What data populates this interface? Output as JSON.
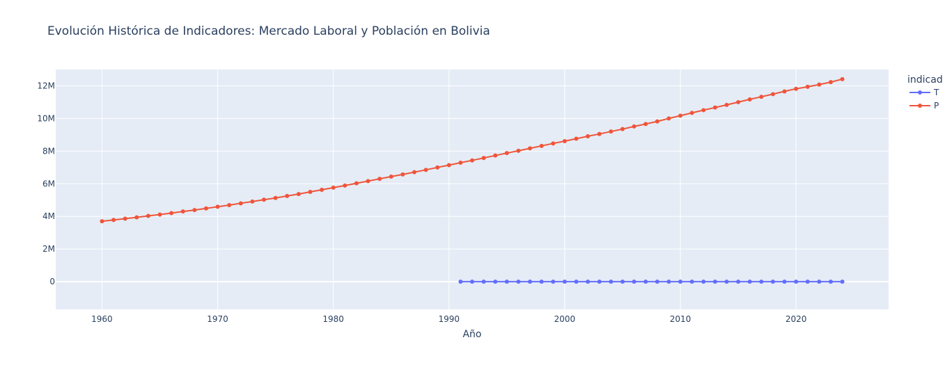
{
  "chart_data": {
    "type": "line",
    "title": "Evolución Histórica de Indicadores: Mercado Laboral y Población en Bolivia",
    "xlabel": "Año",
    "ylabel": "",
    "xlim": [
      1956,
      2028
    ],
    "ylim": [
      -1.7,
      13.0
    ],
    "xticks": [
      1960,
      1970,
      1980,
      1990,
      2000,
      2010,
      2020
    ],
    "yticks": [
      0,
      2,
      4,
      6,
      8,
      10,
      12
    ],
    "ytick_labels": [
      "0",
      "2M",
      "4M",
      "6M",
      "8M",
      "10M",
      "12M"
    ],
    "grid": true,
    "legend": {
      "title": "indicad",
      "position": "right"
    },
    "series": [
      {
        "name": "T",
        "color": "#636efa",
        "x": [
          1991,
          1992,
          1993,
          1994,
          1995,
          1996,
          1997,
          1998,
          1999,
          2000,
          2001,
          2002,
          2003,
          2004,
          2005,
          2006,
          2007,
          2008,
          2009,
          2010,
          2011,
          2012,
          2013,
          2014,
          2015,
          2016,
          2017,
          2018,
          2019,
          2020,
          2021,
          2022,
          2023,
          2024
        ],
        "values": [
          0,
          0,
          0,
          0,
          0,
          0,
          0,
          0,
          0,
          0,
          0,
          0,
          0,
          0,
          0,
          0,
          0,
          0,
          0,
          0,
          0,
          0,
          0,
          0,
          0,
          0,
          0,
          0,
          0,
          0,
          0,
          0,
          0,
          0
        ]
      },
      {
        "name": "P",
        "color": "#ef553b",
        "x": [
          1960,
          1961,
          1962,
          1963,
          1964,
          1965,
          1966,
          1967,
          1968,
          1969,
          1970,
          1971,
          1972,
          1973,
          1974,
          1975,
          1976,
          1977,
          1978,
          1979,
          1980,
          1981,
          1982,
          1983,
          1984,
          1985,
          1986,
          1987,
          1988,
          1989,
          1990,
          1991,
          1992,
          1993,
          1994,
          1995,
          1996,
          1997,
          1998,
          1999,
          2000,
          2001,
          2002,
          2003,
          2004,
          2005,
          2006,
          2007,
          2008,
          2009,
          2010,
          2011,
          2012,
          2013,
          2014,
          2015,
          2016,
          2017,
          2018,
          2019,
          2020,
          2021,
          2022,
          2023,
          2024
        ],
        "values": [
          3.7,
          3.78,
          3.86,
          3.94,
          4.03,
          4.11,
          4.2,
          4.3,
          4.39,
          4.49,
          4.59,
          4.69,
          4.8,
          4.91,
          5.02,
          5.13,
          5.25,
          5.37,
          5.5,
          5.63,
          5.76,
          5.89,
          6.03,
          6.16,
          6.3,
          6.44,
          6.57,
          6.71,
          6.85,
          7.0,
          7.14,
          7.29,
          7.43,
          7.58,
          7.73,
          7.88,
          8.02,
          8.17,
          8.32,
          8.47,
          8.61,
          8.76,
          8.91,
          9.05,
          9.2,
          9.35,
          9.51,
          9.66,
          9.82,
          10.0,
          10.17,
          10.34,
          10.51,
          10.67,
          10.83,
          11.0,
          11.17,
          11.33,
          11.49,
          11.66,
          11.82,
          11.94,
          12.08,
          12.23,
          12.41
        ]
      }
    ]
  }
}
